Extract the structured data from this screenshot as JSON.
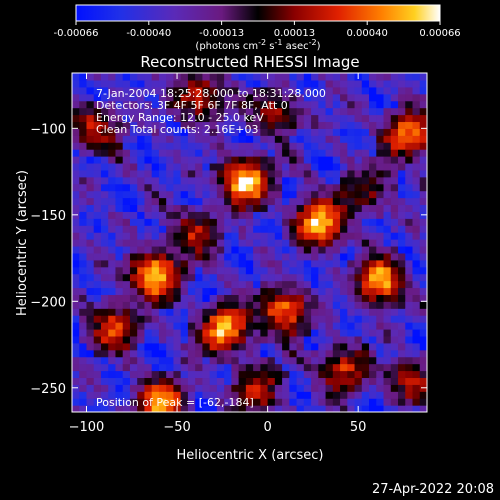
{
  "chart_data": {
    "type": "heatmap",
    "title": "Reconstructed RHESSI Image",
    "xlabel": "Heliocentric X (arcsec)",
    "ylabel": "Heliocentric Y (arcsec)",
    "xlim": [
      -108,
      88
    ],
    "ylim": [
      -264,
      -68
    ],
    "x_ticks": [
      -100,
      -50,
      0,
      50
    ],
    "y_ticks": [
      -100,
      -150,
      -200,
      -250
    ],
    "colorbar": {
      "ticks": [
        "-0.00066",
        "-0.00040",
        "-0.00013",
        "0.00013",
        "0.00040",
        "0.00066"
      ],
      "range": [
        -0.00066,
        0.00066
      ],
      "unit_base": "(photons cm",
      "unit_e1": "-2",
      "unit_mid1": " s",
      "unit_e2": "-1",
      "unit_mid2": " asec",
      "unit_e3": "-2",
      "unit_end": ")"
    },
    "annotations": [
      "7-Jan-2004 18:25:28.000 to 18:31:28.000",
      "Detectors: 3F 4F 5F 6F 7F 8F, Att 0",
      "Energy Range: 12.0 - 25.0 keV",
      "Clean     Total counts: 2.16E+03"
    ],
    "peak_label": "Position of Peak = [-62,-184]",
    "sources": [
      {
        "x": -12,
        "y": -130,
        "i": 1.0
      },
      {
        "x": 28,
        "y": -155,
        "i": 0.95
      },
      {
        "x": -62,
        "y": -184,
        "i": 1.0
      },
      {
        "x": 62,
        "y": -188,
        "i": 0.9
      },
      {
        "x": 78,
        "y": -104,
        "i": 0.8
      },
      {
        "x": -24,
        "y": -216,
        "i": 0.9
      },
      {
        "x": 10,
        "y": -205,
        "i": 0.8
      },
      {
        "x": -58,
        "y": -258,
        "i": 0.8
      },
      {
        "x": -38,
        "y": -82,
        "i": 0.6
      },
      {
        "x": -85,
        "y": -215,
        "i": 0.65
      },
      {
        "x": 42,
        "y": -238,
        "i": 0.6
      },
      {
        "x": -95,
        "y": -100,
        "i": 0.55
      },
      {
        "x": 5,
        "y": -90,
        "i": 0.5
      },
      {
        "x": -40,
        "y": -160,
        "i": 0.5
      },
      {
        "x": 55,
        "y": -135,
        "i": 0.45
      },
      {
        "x": -5,
        "y": -250,
        "i": 0.5
      },
      {
        "x": 80,
        "y": -245,
        "i": 0.45
      }
    ]
  },
  "footer": {
    "timestamp": "27-Apr-2022 20:08"
  }
}
